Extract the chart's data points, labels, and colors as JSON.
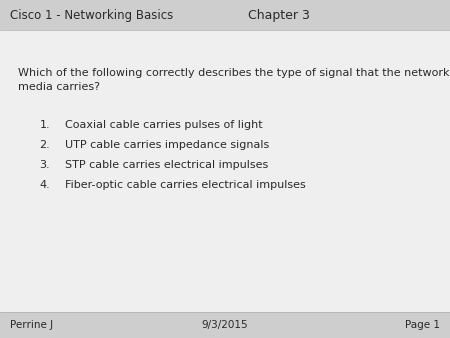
{
  "header_bg": "#cecece",
  "footer_bg": "#cecece",
  "body_bg": "#efefef",
  "header_left": "Cisco 1 - Networking Basics",
  "header_center": "Chapter 3",
  "footer_left": "Perrine J",
  "footer_center": "9/3/2015",
  "footer_right": "Page 1",
  "question_line1": "Which of the following correctly describes the type of signal that the network",
  "question_line2": "media carries?",
  "options": [
    "Coaxial cable carries pulses of light",
    "UTP cable carries impedance signals",
    "STP cable carries electrical impulses",
    "Fiber-optic cable carries electrical impulses"
  ],
  "header_fontsize": 8.5,
  "chapter_fontsize": 9.0,
  "question_fontsize": 8.0,
  "option_fontsize": 8.0,
  "footer_fontsize": 7.5,
  "dark_text": "#2a2a2a"
}
